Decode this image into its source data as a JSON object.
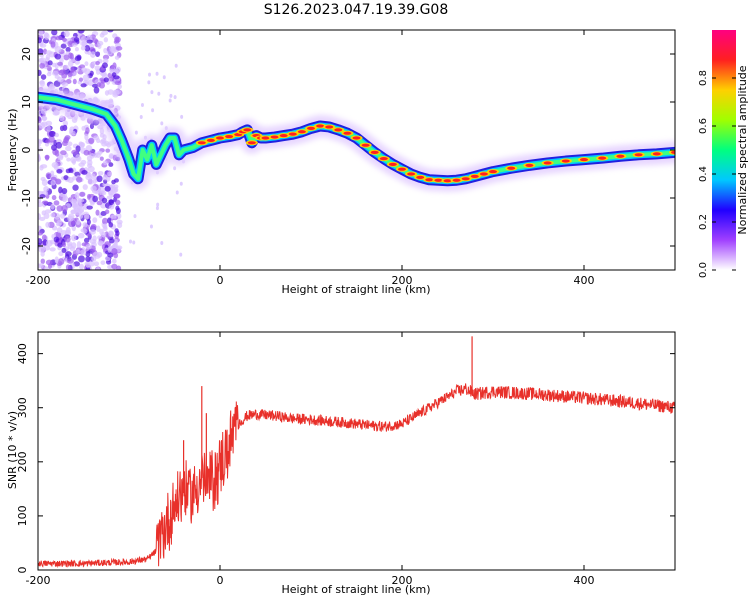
{
  "title": "S126.2023.047.19.39.G08",
  "chart_data": [
    {
      "type": "heatmap",
      "xlabel": "Height of straight line (km)",
      "ylabel": "Frequency (Hz)",
      "xlim": [
        -200,
        500
      ],
      "ylim": [
        -25,
        25
      ],
      "x_ticks": [
        -200,
        0,
        200,
        400
      ],
      "y_ticks": [
        -20,
        -10,
        0,
        10,
        20
      ],
      "ridge": {
        "x": [
          -200,
          -180,
          -160,
          -140,
          -125,
          -115,
          -108,
          -100,
          -95,
          -90,
          -85,
          -80,
          -75,
          -70,
          -65,
          -60,
          -55,
          -50,
          -45,
          -40,
          -30,
          -20,
          -10,
          0,
          10,
          20,
          25,
          30,
          35,
          40,
          45,
          50,
          60,
          70,
          80,
          90,
          100,
          110,
          120,
          130,
          140,
          150,
          160,
          170,
          180,
          190,
          200,
          210,
          220,
          230,
          240,
          250,
          260,
          270,
          280,
          290,
          300,
          320,
          340,
          360,
          380,
          400,
          420,
          440,
          460,
          480,
          500
        ],
        "y": [
          11,
          10.5,
          9.5,
          8.5,
          7.5,
          5,
          2,
          -2,
          -5,
          -6,
          0,
          -2,
          1,
          -3,
          -1,
          1,
          2.5,
          2.5,
          -1,
          0,
          0.5,
          1.5,
          2,
          2.5,
          2.8,
          3.2,
          3.8,
          4.2,
          1.5,
          3,
          2.5,
          2.5,
          2.7,
          3,
          3.3,
          3.8,
          4.5,
          5,
          4.8,
          4.2,
          3.5,
          2.5,
          1,
          -0.5,
          -1.8,
          -3,
          -4,
          -5,
          -5.7,
          -6.2,
          -6.3,
          -6.4,
          -6.3,
          -6,
          -5.5,
          -5,
          -4.5,
          -3.8,
          -3.2,
          -2.7,
          -2.3,
          -2,
          -1.7,
          -1.3,
          -1,
          -0.8,
          -0.5
        ]
      },
      "noise_region_x": [
        -200,
        -110
      ],
      "colorbar": {
        "label": "Normalized spectral amplitude",
        "range": [
          0,
          1
        ],
        "ticks": [
          0.0,
          0.2,
          0.4,
          0.6,
          0.8
        ],
        "tick_labels": [
          "0.0",
          "0.2",
          "0.4",
          "0.6",
          "0.8"
        ],
        "colors": [
          "#ffffff",
          "#a040ff",
          "#2000ff",
          "#00c8ff",
          "#00ff80",
          "#a0ff00",
          "#ffd000",
          "#ff2020",
          "#ff0080"
        ]
      }
    },
    {
      "type": "line",
      "xlabel": "Height of straight line (km)",
      "ylabel": "SNR (10 * v/v)",
      "xlim": [
        -200,
        500
      ],
      "ylim": [
        0,
        440
      ],
      "x_ticks": [
        -200,
        0,
        200,
        400
      ],
      "y_ticks": [
        0,
        100,
        200,
        300,
        400
      ],
      "color": "#e8302a",
      "series": [
        {
          "x": [
            -200,
            -150,
            -100,
            -80,
            -70,
            -60,
            -50,
            -40,
            -30,
            -20,
            -10,
            0,
            10,
            20,
            30,
            40,
            60,
            80,
            100,
            120,
            140,
            160,
            180,
            200,
            220,
            240,
            260,
            270,
            280,
            300,
            350,
            400,
            450,
            500
          ],
          "values": [
            12,
            12,
            15,
            20,
            35,
            80,
            120,
            150,
            140,
            170,
            160,
            190,
            230,
            270,
            285,
            288,
            285,
            280,
            278,
            275,
            272,
            268,
            265,
            270,
            290,
            310,
            330,
            335,
            325,
            330,
            325,
            318,
            310,
            300
          ]
        }
      ],
      "spikes": [
        {
          "x": -40,
          "y": 240
        },
        {
          "x": -20,
          "y": 340
        },
        {
          "x": -15,
          "y": 290
        },
        {
          "x": 277,
          "y": 432
        }
      ]
    }
  ]
}
